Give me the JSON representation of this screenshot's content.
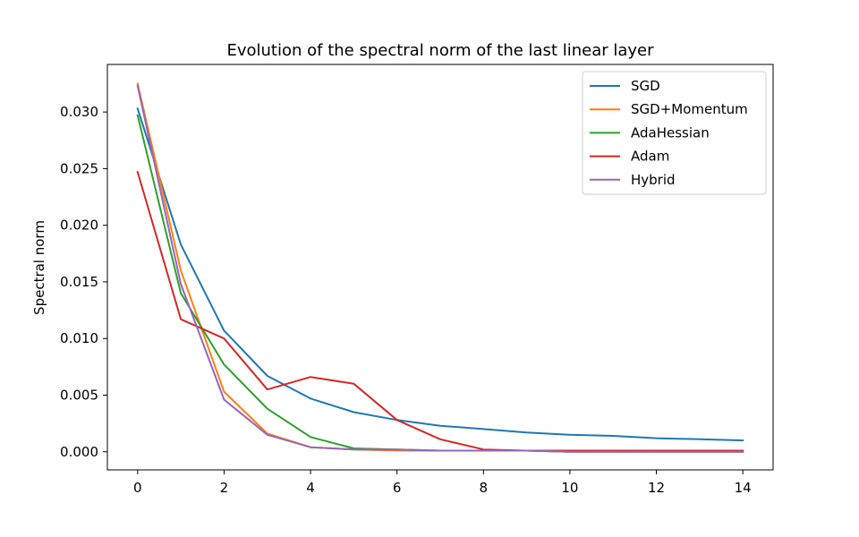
{
  "chart_data": {
    "type": "line",
    "title": "Evolution of the spectral norm of the last linear layer",
    "xlabel": "",
    "ylabel": "Spectral norm",
    "x": [
      0,
      1,
      2,
      3,
      4,
      5,
      6,
      7,
      8,
      9,
      10,
      11,
      12,
      13,
      14
    ],
    "xlim": [
      -0.7,
      14.7
    ],
    "ylim": [
      -0.0016,
      0.0342
    ],
    "xticks": [
      0,
      2,
      4,
      6,
      8,
      10,
      12,
      14
    ],
    "xtick_labels": [
      "0",
      "2",
      "4",
      "6",
      "8",
      "10",
      "12",
      "14"
    ],
    "yticks": [
      0.0,
      0.005,
      0.01,
      0.015,
      0.02,
      0.025,
      0.03
    ],
    "ytick_labels": [
      "0.000",
      "0.005",
      "0.010",
      "0.015",
      "0.020",
      "0.025",
      "0.030"
    ],
    "grid": false,
    "legend_position": "top-right",
    "series": [
      {
        "name": "SGD",
        "color": "#1f77b4",
        "values": [
          0.0303,
          0.0183,
          0.0107,
          0.0067,
          0.0047,
          0.0035,
          0.0028,
          0.0023,
          0.002,
          0.0017,
          0.0015,
          0.0014,
          0.0012,
          0.0011,
          0.001
        ]
      },
      {
        "name": "SGD+Momentum",
        "color": "#ff7f0e",
        "values": [
          0.0325,
          0.016,
          0.0053,
          0.0016,
          0.0004,
          0.0002,
          0.0001,
          0.0001,
          0.0001,
          0.0001,
          0.0,
          0.0,
          0.0,
          0.0,
          0.0
        ]
      },
      {
        "name": "AdaHessian",
        "color": "#2ca02c",
        "values": [
          0.0297,
          0.014,
          0.0077,
          0.0038,
          0.0013,
          0.0003,
          0.0002,
          0.0001,
          0.0001,
          0.0001,
          0.0,
          0.0,
          0.0,
          0.0,
          0.0
        ]
      },
      {
        "name": "Adam",
        "color": "#d62728",
        "values": [
          0.0247,
          0.0117,
          0.01,
          0.0055,
          0.0066,
          0.006,
          0.0028,
          0.0011,
          0.0002,
          0.0001,
          0.0001,
          0.0001,
          0.0001,
          0.0001,
          0.0001
        ]
      },
      {
        "name": "Hybrid",
        "color": "#9467bd",
        "values": [
          0.0323,
          0.0148,
          0.0046,
          0.0015,
          0.0004,
          0.0002,
          0.0002,
          0.0001,
          0.0001,
          0.0001,
          0.0,
          0.0,
          0.0,
          0.0,
          0.0
        ]
      }
    ]
  }
}
